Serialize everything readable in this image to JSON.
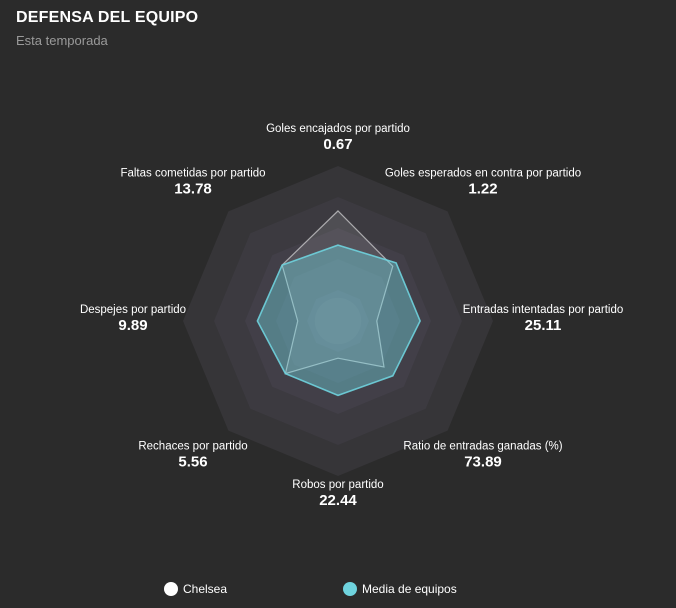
{
  "header": {
    "title": "DEFENSA DEL EQUIPO",
    "subtitle": "Esta temporada"
  },
  "colors": {
    "background": "#2b2b2b",
    "rings": [
      "#363538",
      "#3c3a40",
      "#423f48",
      "#484450",
      "#4e4a58"
    ],
    "team": "#ffffff",
    "average": "#6fd3de"
  },
  "chart_data": {
    "type": "radar",
    "title": "DEFENSA DEL EQUIPO",
    "subtitle": "Esta temporada",
    "axes": [
      {
        "label": "Goles encajados por partido",
        "value": "0.67"
      },
      {
        "label": "Goles esperados en contra por partido",
        "value": "1.22"
      },
      {
        "label": "Entradas intentadas por partido",
        "value": "25.11"
      },
      {
        "label": "Ratio de entradas ganadas (%)",
        "value": "73.89"
      },
      {
        "label": "Robos por partido",
        "value": "22.44"
      },
      {
        "label": "Rechaces por partido",
        "value": "5.56"
      },
      {
        "label": "Despejes por partido",
        "value": "9.89"
      },
      {
        "label": "Faltas cometidas por partido",
        "value": "13.78"
      }
    ],
    "scale": [
      0,
      1
    ],
    "series": [
      {
        "name": "Chelsea",
        "color": "#ffffff",
        "values": [
          0.71,
          0.5,
          0.25,
          0.42,
          0.24,
          0.48,
          0.26,
          0.51
        ]
      },
      {
        "name": "Media de equipos",
        "color": "#6fd3de",
        "values": [
          0.49,
          0.53,
          0.53,
          0.5,
          0.48,
          0.48,
          0.52,
          0.51
        ]
      }
    ],
    "legend": "bottom"
  }
}
